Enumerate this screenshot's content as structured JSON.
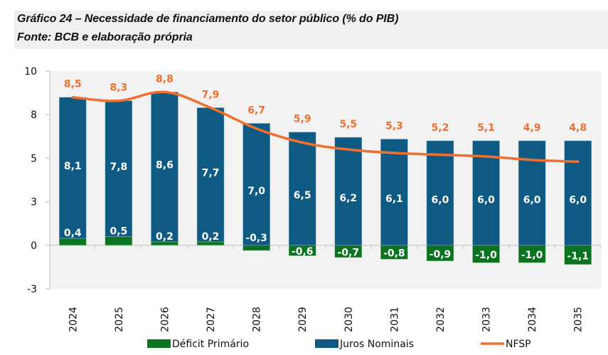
{
  "header": {
    "title": "Gráfico 24 – Necessidade de financiamento do setor público (% do PIB)",
    "source": "Fonte: BCB e elaboração própria"
  },
  "colors": {
    "deficit": "#0a7320",
    "juros": "#0f5a82",
    "nfsp": "#f07030",
    "plot_background": "#f2f2f2"
  },
  "chart_data": {
    "type": "bar",
    "title": "Gráfico 24 – Necessidade de financiamento do setor público (% do PIB)",
    "subtitle": "Fonte: BCB e elaboração própria",
    "xlabel": "",
    "ylabel": "",
    "ylim": [
      -2.5,
      10
    ],
    "yticks": [
      -2.5,
      0,
      2.5,
      5,
      7.5,
      10
    ],
    "ytick_labels": [
      "-3",
      "0",
      "3",
      "5",
      "8",
      "10"
    ],
    "grid": false,
    "stacked": true,
    "legend_position": "bottom",
    "categories": [
      "2024",
      "2025",
      "2026",
      "2027",
      "2028",
      "2029",
      "2030",
      "2031",
      "2032",
      "2033",
      "2034",
      "2035"
    ],
    "series": [
      {
        "name": "Déficit Primário",
        "type": "bar",
        "values": [
          0.4,
          0.5,
          0.2,
          0.2,
          -0.3,
          -0.6,
          -0.7,
          -0.8,
          -0.9,
          -1.0,
          -1.0,
          -1.1
        ],
        "labels": [
          "0,4",
          "0,5",
          "0,2",
          "0,2",
          "-0,3",
          "-0,6",
          "-0,7",
          "-0,8",
          "-0,9",
          "-1,0",
          "-1,0",
          "-1,1"
        ]
      },
      {
        "name": "Juros Nominais",
        "type": "bar",
        "values": [
          8.1,
          7.8,
          8.6,
          7.7,
          7.0,
          6.5,
          6.2,
          6.1,
          6.0,
          6.0,
          6.0,
          6.0
        ],
        "labels": [
          "8,1",
          "7,8",
          "8,6",
          "7,7",
          "7,0",
          "6,5",
          "6,2",
          "6,1",
          "6,0",
          "6,0",
          "6,0",
          "6,0"
        ]
      },
      {
        "name": "NFSP",
        "type": "line",
        "values": [
          8.5,
          8.3,
          8.8,
          7.9,
          6.7,
          5.9,
          5.5,
          5.3,
          5.2,
          5.1,
          4.9,
          4.8
        ],
        "labels": [
          "8,5",
          "8,3",
          "8,8",
          "7,9",
          "6,7",
          "5,9",
          "5,5",
          "5,3",
          "5,2",
          "5,1",
          "4,9",
          "4,8"
        ]
      }
    ]
  }
}
